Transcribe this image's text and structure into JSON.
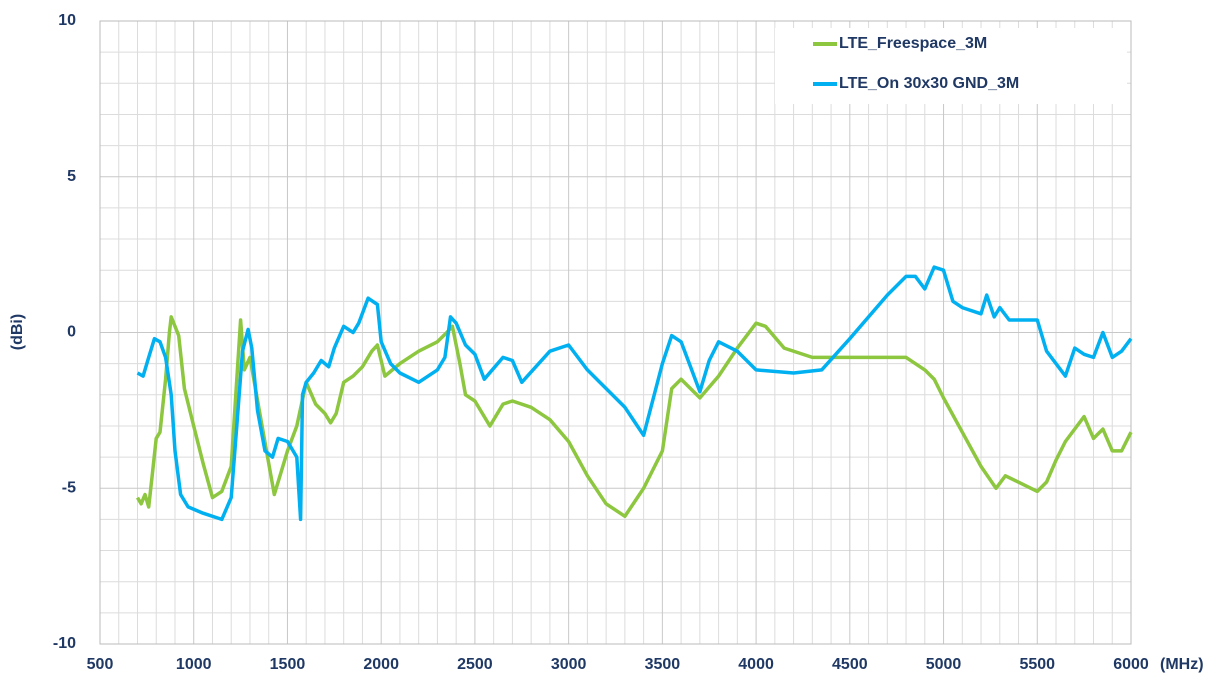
{
  "chart_data": {
    "type": "line",
    "y_label": "(dBi)",
    "x_label": "(MHz)",
    "xlim": [
      500,
      6000
    ],
    "xticks": [
      500,
      1000,
      1500,
      2000,
      2500,
      3000,
      3500,
      4000,
      4500,
      5000,
      5500,
      6000
    ],
    "ylim": [
      -10,
      10
    ],
    "yticks": [
      -10,
      -5,
      0,
      5,
      10
    ],
    "grid": true,
    "legend": "upper right",
    "series": [
      {
        "name": "LTE_Freespace_3M",
        "color": "#8dc63f",
        "x": [
          700,
          720,
          740,
          760,
          780,
          800,
          820,
          850,
          870,
          880,
          900,
          920,
          950,
          1000,
          1050,
          1100,
          1150,
          1200,
          1230,
          1250,
          1270,
          1300,
          1350,
          1400,
          1430,
          1460,
          1500,
          1550,
          1600,
          1650,
          1700,
          1730,
          1760,
          1800,
          1850,
          1900,
          1950,
          1980,
          2020,
          2100,
          2200,
          2300,
          2350,
          2380,
          2420,
          2450,
          2500,
          2580,
          2650,
          2700,
          2800,
          2900,
          3000,
          3100,
          3200,
          3300,
          3400,
          3500,
          3550,
          3600,
          3700,
          3800,
          3900,
          4000,
          4050,
          4150,
          4300,
          4500,
          4700,
          4800,
          4900,
          4950,
          5000,
          5100,
          5200,
          5280,
          5330,
          5500,
          5550,
          5600,
          5650,
          5750,
          5800,
          5850,
          5900,
          5950,
          6000
        ],
        "values": [
          -5.3,
          -5.5,
          -5.2,
          -5.6,
          -4.5,
          -3.4,
          -3.2,
          -1.5,
          0.0,
          0.5,
          0.2,
          -0.1,
          -1.8,
          -3.0,
          -4.2,
          -5.3,
          -5.1,
          -4.3,
          -1.5,
          0.4,
          -1.2,
          -0.8,
          -2.5,
          -4.2,
          -5.2,
          -4.6,
          -3.8,
          -3.0,
          -1.6,
          -2.3,
          -2.6,
          -2.9,
          -2.6,
          -1.6,
          -1.4,
          -1.1,
          -0.6,
          -0.4,
          -1.4,
          -1.0,
          -0.6,
          -0.3,
          0.0,
          0.2,
          -1.0,
          -2.0,
          -2.2,
          -3.0,
          -2.3,
          -2.2,
          -2.4,
          -2.8,
          -3.5,
          -4.6,
          -5.5,
          -5.9,
          -5.0,
          -3.8,
          -1.8,
          -1.5,
          -2.1,
          -1.4,
          -0.5,
          0.3,
          0.2,
          -0.5,
          -0.8,
          -0.8,
          -0.8,
          -0.8,
          -1.2,
          -1.5,
          -2.1,
          -3.2,
          -4.3,
          -5.0,
          -4.6,
          -5.1,
          -4.8,
          -4.1,
          -3.5,
          -2.7,
          -3.4,
          -3.1,
          -3.8,
          -3.8,
          -3.2
        ]
      },
      {
        "name": "LTE_On 30x30 GND_3M",
        "color": "#00b0f0",
        "x": [
          700,
          730,
          760,
          790,
          820,
          850,
          880,
          900,
          930,
          970,
          1050,
          1150,
          1200,
          1230,
          1260,
          1290,
          1310,
          1340,
          1380,
          1420,
          1450,
          1500,
          1530,
          1550,
          1570,
          1580,
          1600,
          1640,
          1680,
          1720,
          1750,
          1800,
          1850,
          1880,
          1930,
          1980,
          2000,
          2050,
          2100,
          2200,
          2300,
          2340,
          2370,
          2400,
          2450,
          2500,
          2550,
          2650,
          2700,
          2750,
          2900,
          3000,
          3100,
          3300,
          3400,
          3500,
          3550,
          3600,
          3700,
          3750,
          3800,
          3900,
          4000,
          4200,
          4350,
          4500,
          4700,
          4800,
          4850,
          4900,
          4950,
          5000,
          5050,
          5100,
          5200,
          5230,
          5270,
          5300,
          5350,
          5500,
          5550,
          5650,
          5700,
          5750,
          5800,
          5850,
          5900,
          5950,
          6000
        ],
        "values": [
          -1.3,
          -1.4,
          -0.8,
          -0.2,
          -0.3,
          -0.8,
          -2.0,
          -3.8,
          -5.2,
          -5.6,
          -5.8,
          -6.0,
          -5.3,
          -3.0,
          -0.6,
          0.1,
          -0.5,
          -2.5,
          -3.8,
          -4.0,
          -3.4,
          -3.5,
          -3.8,
          -4.0,
          -6.0,
          -2.0,
          -1.6,
          -1.3,
          -0.9,
          -1.1,
          -0.5,
          0.2,
          0.0,
          0.3,
          1.1,
          0.9,
          -0.3,
          -1.0,
          -1.3,
          -1.6,
          -1.2,
          -0.8,
          0.5,
          0.3,
          -0.4,
          -0.7,
          -1.5,
          -0.8,
          -0.9,
          -1.6,
          -0.6,
          -0.4,
          -1.2,
          -2.4,
          -3.3,
          -1.0,
          -0.1,
          -0.3,
          -1.9,
          -0.9,
          -0.3,
          -0.6,
          -1.2,
          -1.3,
          -1.2,
          -0.2,
          1.2,
          1.8,
          1.8,
          1.4,
          2.1,
          2.0,
          1.0,
          0.8,
          0.6,
          1.2,
          0.5,
          0.8,
          0.4,
          0.4,
          -0.6,
          -1.4,
          -0.5,
          -0.7,
          -0.8,
          0.0,
          -0.8,
          -0.6,
          -0.2
        ]
      }
    ]
  }
}
